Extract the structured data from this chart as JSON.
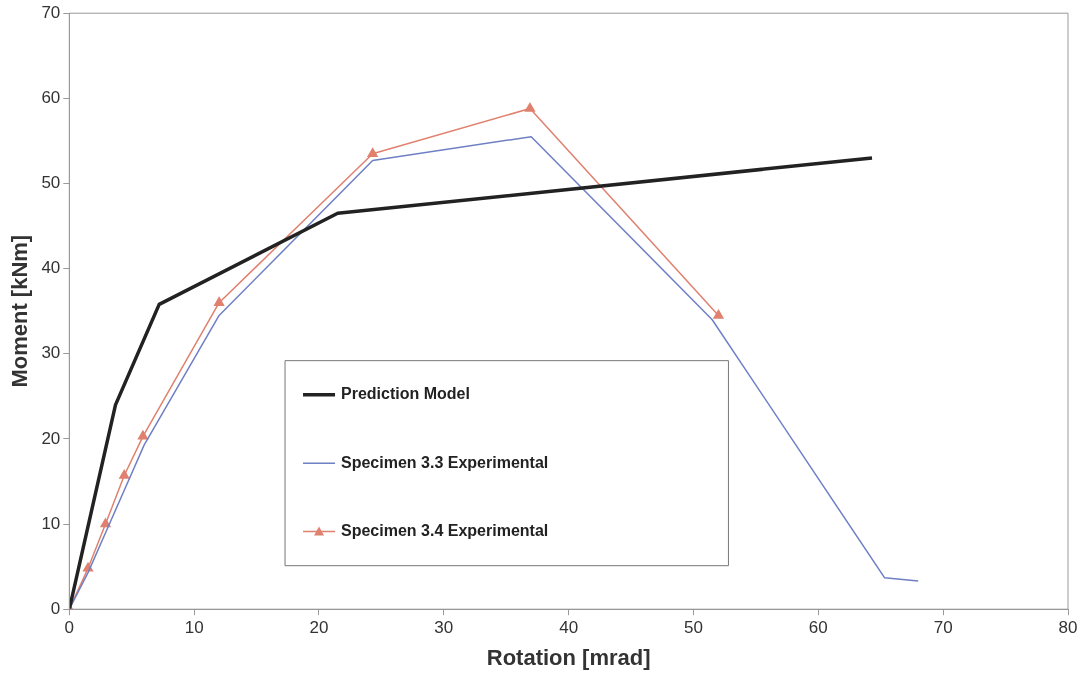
{
  "chart_data": {
    "type": "line",
    "xlabel": "Rotation [mrad]",
    "ylabel": "Moment [kNm]",
    "xlim": [
      0,
      80
    ],
    "xticks": [
      0,
      10,
      20,
      30,
      40,
      50,
      60,
      70,
      80
    ],
    "ylim": [
      0,
      70
    ],
    "yticks": [
      0,
      10,
      20,
      30,
      40,
      50,
      60,
      70
    ],
    "grid": false,
    "legend": "bottom",
    "line_style": "solid",
    "series": [
      {
        "name": "Prediction Model",
        "color": "#222222",
        "marker": "none",
        "x": [
          0,
          3.7,
          7.2,
          21.5,
          64.3
        ],
        "values": [
          0,
          24,
          35.8,
          46.5,
          53
        ]
      },
      {
        "name": "Specimen 3.3 Experimental",
        "color": "#6f7fc4",
        "marker": "none",
        "x": [
          0,
          1.5,
          3,
          4.5,
          6,
          12,
          24.3,
          37,
          51.5,
          65.3,
          68
        ],
        "values": [
          0,
          4.3,
          9.3,
          14.3,
          19.3,
          34.5,
          52.7,
          55.5,
          34,
          3.7,
          3.3
        ]
      },
      {
        "name": "Specimen 3.4 Experimental",
        "color": "#e0806e",
        "marker": "triangle",
        "x": [
          0,
          1.5,
          2.9,
          4.4,
          5.9,
          12,
          24.3,
          36.9,
          52
        ],
        "values": [
          0,
          4.8,
          10,
          15.7,
          20.3,
          36,
          53.5,
          58.8,
          34.5
        ]
      }
    ]
  }
}
